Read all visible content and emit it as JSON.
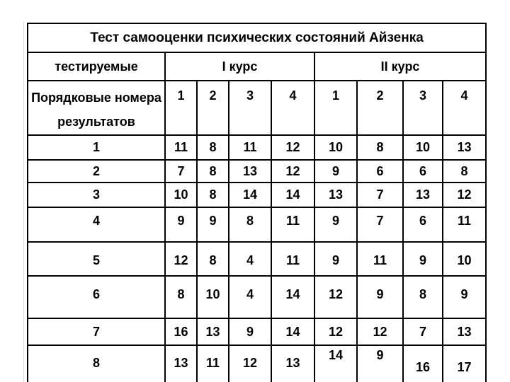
{
  "slide": {
    "title": "Тест самооценки психических состояний Айзенка"
  },
  "table": {
    "header": {
      "tested_label": "тестируемые",
      "course1_label": "I курс",
      "course2_label": "II курс"
    },
    "subheader": {
      "row_label_line1": "Порядковые номера",
      "row_label_line2": "результатов",
      "course1_cols": [
        "1",
        "2",
        "3",
        "4"
      ],
      "course2_cols": [
        "1",
        "2",
        "3",
        "4"
      ]
    },
    "rows": [
      {
        "label": "1",
        "values": [
          "11",
          "8",
          "11",
          "12",
          "10",
          "8",
          "10",
          "13"
        ]
      },
      {
        "label": "2",
        "values": [
          "7",
          "8",
          "13",
          "12",
          "9",
          "6",
          "6",
          "8"
        ]
      },
      {
        "label": "3",
        "values": [
          "10",
          "8",
          "14",
          "14",
          "13",
          "7",
          "13",
          "12"
        ]
      },
      {
        "label": "4",
        "values": [
          "9",
          "9",
          "8",
          "11",
          "9",
          "7",
          "6",
          "11"
        ]
      },
      {
        "label": "5",
        "values": [
          "12",
          "8",
          "4",
          "11",
          "9",
          "11",
          "9",
          "10"
        ]
      },
      {
        "label": "6",
        "values": [
          "8",
          "10",
          "4",
          "14",
          "12",
          "9",
          "8",
          "9"
        ]
      },
      {
        "label": "7",
        "values": [
          "16",
          "13",
          "9",
          "14",
          "12",
          "12",
          "7",
          "13"
        ]
      },
      {
        "label": "8",
        "values": [
          "13",
          "11",
          "12",
          "13",
          "14",
          "9",
          "16",
          "17"
        ]
      }
    ]
  },
  "chart_data": {
    "type": "table",
    "title": "Тест самооценки психических состояний Айзенка",
    "column_groups": [
      "тестируемые",
      "I курс",
      "II курс"
    ],
    "columns": [
      "Порядковые номера результатов",
      "I курс 1",
      "I курс 2",
      "I курс 3",
      "I курс 4",
      "II курс 1",
      "II курс 2",
      "II курс 3",
      "II курс 4"
    ],
    "rows": [
      [
        1,
        11,
        8,
        11,
        12,
        10,
        8,
        10,
        13
      ],
      [
        2,
        7,
        8,
        13,
        12,
        9,
        6,
        6,
        8
      ],
      [
        3,
        10,
        8,
        14,
        14,
        13,
        7,
        13,
        12
      ],
      [
        4,
        9,
        9,
        8,
        11,
        9,
        7,
        6,
        11
      ],
      [
        5,
        12,
        8,
        4,
        11,
        9,
        11,
        9,
        10
      ],
      [
        6,
        8,
        10,
        4,
        14,
        12,
        9,
        8,
        9
      ],
      [
        7,
        16,
        13,
        9,
        14,
        12,
        12,
        7,
        13
      ],
      [
        8,
        13,
        11,
        12,
        13,
        14,
        9,
        16,
        17
      ]
    ],
    "layout": {
      "borders": "all",
      "text_color": "#000000",
      "border_color": "#000000",
      "background": "#ffffff",
      "bottom_row_clipped": true
    }
  },
  "colors": {
    "border": "#000000",
    "text": "#000000",
    "background": "#ffffff",
    "edge_line": "#d7d7d7"
  }
}
